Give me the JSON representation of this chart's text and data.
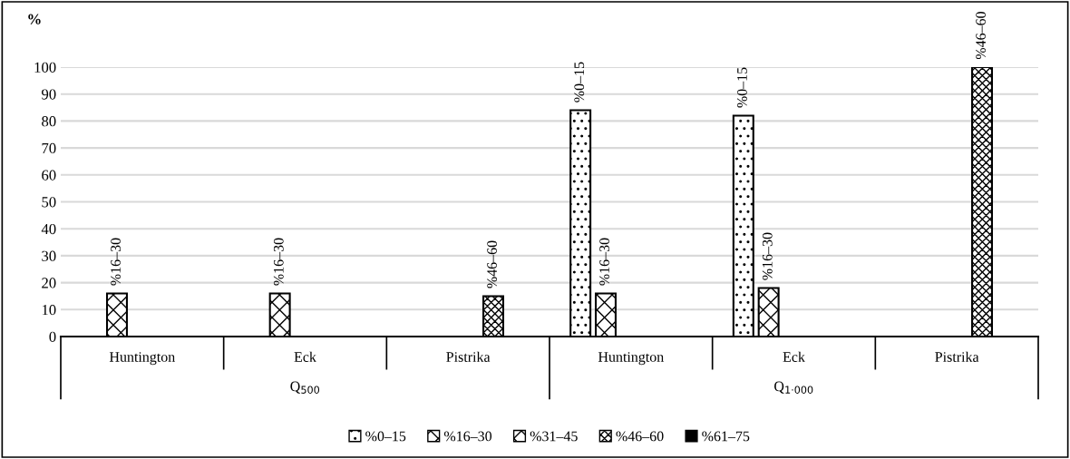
{
  "chart_data": {
    "type": "bar",
    "ylabel": "%",
    "categories": [
      "Huntington",
      "Eck",
      "Pistrika",
      "Huntington",
      "Eck",
      "Pistrika"
    ],
    "annotations": [
      "Q$_{500}$",
      "Q$_{1·000}$"
    ],
    "series": [
      {
        "name": "%0–15",
        "color": "#000000",
        "values": [
          null,
          null,
          null,
          84,
          82,
          null
        ]
      },
      {
        "name": "%16–30",
        "color": "#000000",
        "values": [
          16,
          16,
          null,
          16,
          18,
          null
        ]
      },
      {
        "name": "%31–45",
        "color": "#000000",
        "values": [
          null,
          null,
          null,
          null,
          null,
          null
        ]
      },
      {
        "name": "%46–60",
        "color": "#000000",
        "values": [
          null,
          null,
          15,
          null,
          null,
          100
        ]
      },
      {
        "name": "%61–75",
        "color": "#000000",
        "values": [
          null,
          null,
          null,
          null,
          null,
          null
        ]
      }
    ],
    "ylim": [
      0,
      100
    ],
    "yticks": [
      0,
      10,
      20,
      30,
      40,
      50,
      60,
      70,
      80,
      90,
      100
    ],
    "grid": "y",
    "legend": "bottom"
  }
}
